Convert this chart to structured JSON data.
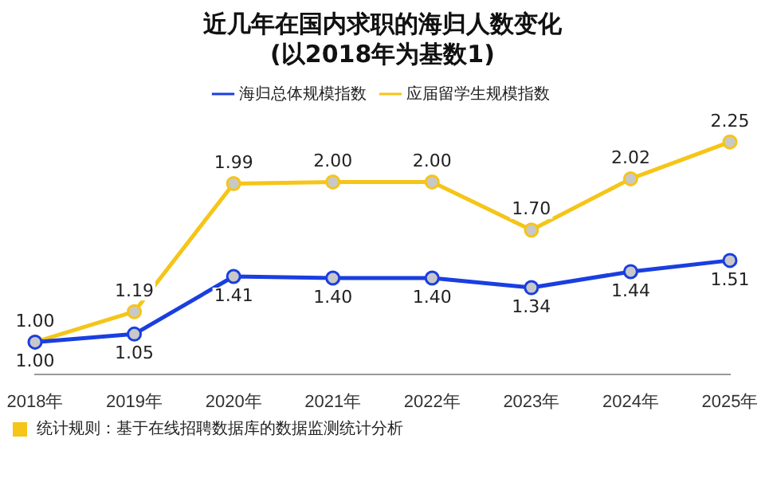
{
  "chart_data": {
    "type": "line",
    "title": "近几年在国内求职的海归人数变化",
    "subtitle": "(以2018年为基数1)",
    "categories": [
      "2018年",
      "2019年",
      "2020年",
      "2021年",
      "2022年",
      "2023年",
      "2024年",
      "2025年"
    ],
    "series": [
      {
        "name": "海归总体规模指数",
        "color": "#1a3ee0",
        "values": [
          1.0,
          1.05,
          1.41,
          1.4,
          1.4,
          1.34,
          1.44,
          1.51
        ],
        "value_labels": [
          "1.00",
          "1.05",
          "1.41",
          "1.40",
          "1.40",
          "1.34",
          "1.44",
          "1.51"
        ]
      },
      {
        "name": "应届留学生规模指数",
        "color": "#f5c518",
        "values": [
          1.0,
          1.19,
          1.99,
          2.0,
          2.0,
          1.7,
          2.02,
          2.25
        ],
        "value_labels": [
          "1.00",
          "1.19",
          "1.99",
          "2.00",
          "2.00",
          "1.70",
          "2.02",
          "2.25"
        ]
      }
    ],
    "legend": "top",
    "marker": "circle",
    "tick_labels": "x",
    "grid": false,
    "annotations": [
      "统计规则：基于在线招聘数据库的数据监测统计分析"
    ]
  }
}
